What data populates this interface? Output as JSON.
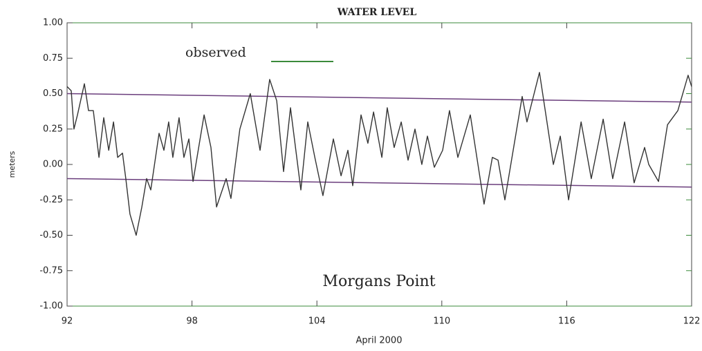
{
  "chart_data": {
    "type": "line",
    "title": "WATER LEVEL",
    "xlabel": "April 2000",
    "ylabel": "meters",
    "annotations": [
      "Morgans Point"
    ],
    "xlim": [
      92,
      122
    ],
    "xticks": [
      92,
      98,
      104,
      110,
      116,
      122
    ],
    "ylim": [
      -1,
      1
    ],
    "yticks": [
      {
        "value": 1,
        "label": "1.00"
      },
      {
        "value": 0.75,
        "label": "0.75"
      },
      {
        "value": 0.5,
        "label": "0.50"
      },
      {
        "value": 0.25,
        "label": "0.25"
      },
      {
        "value": 0,
        "label": "0.00"
      },
      {
        "value": -0.25,
        "label": "-0.25"
      },
      {
        "value": -0.5,
        "label": "-0.50"
      },
      {
        "value": -0.75,
        "label": "-0.75"
      },
      {
        "value": -1,
        "label": "-1.00"
      }
    ],
    "legend_color": "#3a8a3a",
    "reference_color": "#6a3d7c",
    "reference_lines": [
      {
        "x": [
          92,
          122
        ],
        "values": [
          0.5,
          0.44
        ]
      },
      {
        "x": [
          92,
          122
        ],
        "values": [
          -0.1,
          -0.16
        ]
      }
    ],
    "series": [
      {
        "name": "observed",
        "color": "#333333",
        "x": [
          92.0,
          92.2,
          92.33,
          92.5,
          92.83,
          93.03,
          93.26,
          93.53,
          93.76,
          94.0,
          94.23,
          94.43,
          94.66,
          94.82,
          95.02,
          95.32,
          95.59,
          95.82,
          96.02,
          96.42,
          96.65,
          96.88,
          97.08,
          97.38,
          97.61,
          97.85,
          98.05,
          98.58,
          98.91,
          99.18,
          99.41,
          99.64,
          99.87,
          100.3,
          100.8,
          101.27,
          101.73,
          102.07,
          102.4,
          102.73,
          103.23,
          103.56,
          103.9,
          104.29,
          104.79,
          105.16,
          105.49,
          105.72,
          106.12,
          106.45,
          106.72,
          107.12,
          107.38,
          107.71,
          108.05,
          108.38,
          108.71,
          109.04,
          109.31,
          109.64,
          110.04,
          110.37,
          110.77,
          111.37,
          112.03,
          112.43,
          112.7,
          113.03,
          113.86,
          114.09,
          114.69,
          115.36,
          115.69,
          116.09,
          116.69,
          117.18,
          117.75,
          118.21,
          118.78,
          119.24,
          119.74,
          119.94,
          120.41,
          120.84,
          121.34,
          121.83,
          122.0
        ],
        "values": [
          0.55,
          0.52,
          0.25,
          0.35,
          0.57,
          0.38,
          0.38,
          0.05,
          0.33,
          0.1,
          0.3,
          0.05,
          0.08,
          -0.1,
          -0.35,
          -0.5,
          -0.3,
          -0.1,
          -0.18,
          0.22,
          0.1,
          0.3,
          0.05,
          0.33,
          0.05,
          0.18,
          -0.12,
          0.35,
          0.12,
          -0.3,
          -0.2,
          -0.1,
          -0.24,
          0.25,
          0.5,
          0.1,
          0.6,
          0.45,
          -0.05,
          0.4,
          -0.18,
          0.3,
          0.05,
          -0.22,
          0.18,
          -0.08,
          0.1,
          -0.15,
          0.35,
          0.15,
          0.37,
          0.05,
          0.4,
          0.12,
          0.3,
          0.03,
          0.25,
          0.0,
          0.2,
          -0.02,
          0.1,
          0.38,
          0.05,
          0.35,
          -0.28,
          0.05,
          0.03,
          -0.25,
          0.48,
          0.3,
          0.65,
          0.0,
          0.2,
          -0.25,
          0.3,
          -0.1,
          0.32,
          -0.1,
          0.3,
          -0.13,
          0.12,
          0.0,
          -0.12,
          0.28,
          0.38,
          0.63,
          0.55
        ]
      }
    ]
  }
}
